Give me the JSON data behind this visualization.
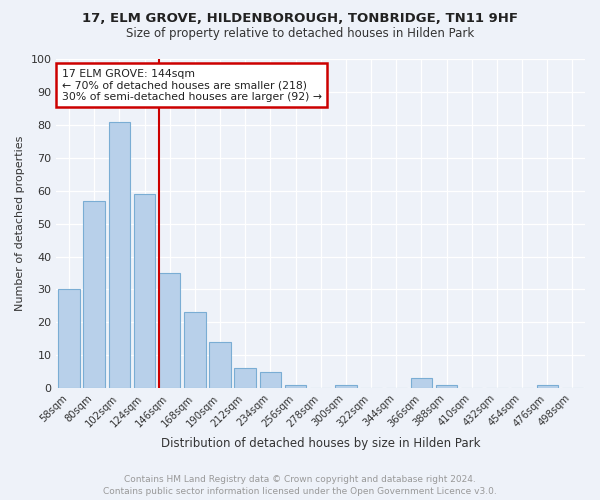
{
  "title1": "17, ELM GROVE, HILDENBOROUGH, TONBRIDGE, TN11 9HF",
  "title2": "Size of property relative to detached houses in Hilden Park",
  "xlabel": "Distribution of detached houses by size in Hilden Park",
  "ylabel": "Number of detached properties",
  "footnote": "Contains HM Land Registry data © Crown copyright and database right 2024.\nContains public sector information licensed under the Open Government Licence v3.0.",
  "categories": [
    "58sqm",
    "80sqm",
    "102sqm",
    "124sqm",
    "146sqm",
    "168sqm",
    "190sqm",
    "212sqm",
    "234sqm",
    "256sqm",
    "278sqm",
    "300sqm",
    "322sqm",
    "344sqm",
    "366sqm",
    "388sqm",
    "410sqm",
    "432sqm",
    "454sqm",
    "476sqm",
    "498sqm"
  ],
  "values": [
    30,
    57,
    81,
    59,
    35,
    23,
    14,
    6,
    5,
    1,
    0,
    1,
    0,
    0,
    3,
    1,
    0,
    0,
    0,
    1,
    0
  ],
  "bar_color": "#b8d0ea",
  "bar_edge_color": "#7aadd4",
  "background_color": "#eef2f9",
  "grid_color": "#ffffff",
  "vline_color": "#cc0000",
  "vline_index": 4,
  "annotation_line1": "17 ELM GROVE: 144sqm",
  "annotation_line2": "← 70% of detached houses are smaller (218)",
  "annotation_line3": "30% of semi-detached houses are larger (92) →",
  "annotation_box_edgecolor": "#cc0000",
  "ylim": [
    0,
    100
  ],
  "yticks": [
    0,
    10,
    20,
    30,
    40,
    50,
    60,
    70,
    80,
    90,
    100
  ]
}
